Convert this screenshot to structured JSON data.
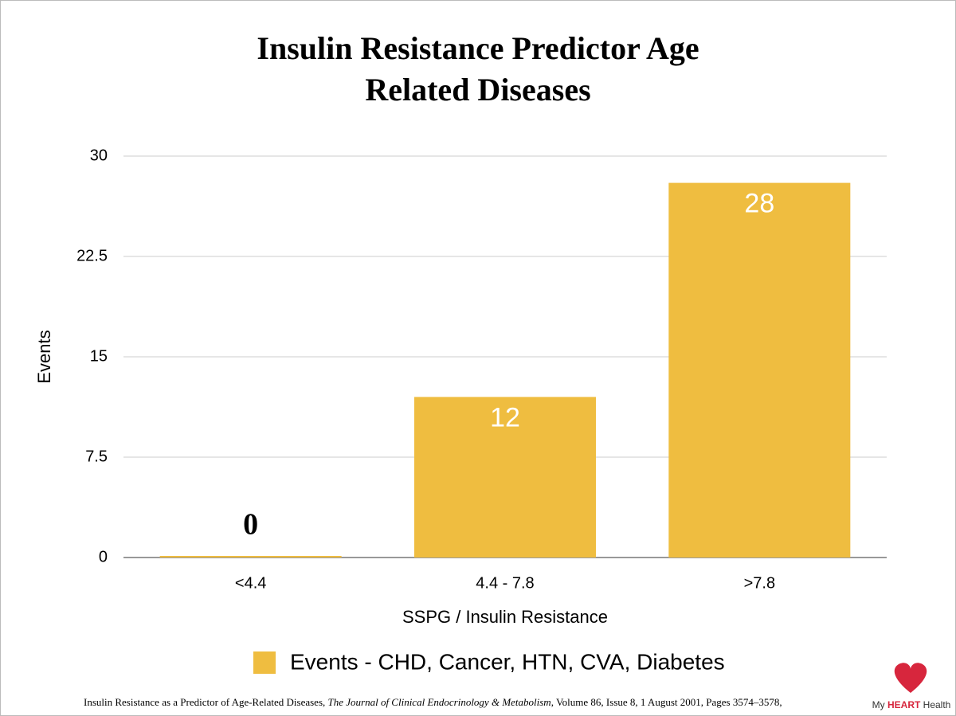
{
  "chart_data": {
    "type": "bar",
    "title": [
      "Insulin Resistance Predictor Age",
      "Related Diseases"
    ],
    "x_label": "SSPG / Insulin Resistance",
    "y_label": "Events",
    "categories": [
      "<4.4",
      "4.4 - 7.8",
      ">7.8"
    ],
    "series": [
      {
        "name": "Events - CHD, Cancer, HTN, CVA, Diabetes",
        "color": "#efbd40",
        "values": [
          0,
          12,
          28
        ]
      }
    ],
    "ylim": [
      0,
      30
    ],
    "yticks": [
      0,
      7.5,
      15,
      22.5,
      30
    ],
    "grid": true,
    "legend": "bottom"
  },
  "footer": {
    "citation": [
      "Insulin Resistance as a Predictor of Age-Related Diseases, ",
      "The Journal of Clinical Endocrinology & Metabolism",
      ", Volume 86, Issue 8, 1 August 2001, Pages 3574–3578,"
    ]
  },
  "logo": {
    "text": [
      "My ",
      "HEART",
      " Health"
    ]
  }
}
